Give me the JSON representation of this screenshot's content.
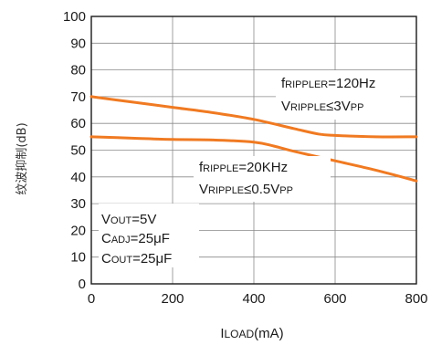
{
  "chart_data": {
    "type": "line",
    "xlabel_main": "I",
    "xlabel_sub": "LOAD",
    "xlabel_unit": "(mA)",
    "ylabel": "纹波抑制(dB)",
    "xlim": [
      0,
      800
    ],
    "ylim": [
      0,
      100
    ],
    "x_ticks": [
      0,
      200,
      400,
      600,
      800
    ],
    "y_ticks": [
      0,
      10,
      20,
      30,
      40,
      50,
      60,
      70,
      80,
      90,
      100
    ],
    "grid": true,
    "line_color": "#f07a22",
    "series": [
      {
        "x": [
          0,
          100,
          200,
          300,
          400,
          500,
          560,
          600,
          700,
          800
        ],
        "y": [
          70,
          68,
          66,
          64,
          61.5,
          58,
          56,
          55.5,
          55,
          55
        ]
      },
      {
        "x": [
          0,
          100,
          200,
          300,
          400,
          450,
          500,
          600,
          700,
          800
        ],
        "y": [
          55,
          54.5,
          54,
          53.8,
          53,
          51.5,
          49.5,
          46,
          42.5,
          38.5
        ]
      }
    ],
    "annotations": {
      "upper": {
        "line1": {
          "main": "f",
          "sub": "RIPPLER",
          "rest": "=120Hz"
        },
        "line2": {
          "main": "V",
          "sub": "RIPPLE",
          "rest": "≤3V",
          "sub2": "PP"
        }
      },
      "lower": {
        "line1": {
          "main": "f",
          "sub": "RIPPLE",
          "rest": "=20KHz"
        },
        "line2": {
          "main": "V",
          "sub": "RIPPLE",
          "rest": "≤0.5V",
          "sub2": "PP"
        }
      },
      "conditions": [
        {
          "main": "V",
          "sub": "OUT",
          "rest": "=5V"
        },
        {
          "main": "C",
          "sub": "ADJ",
          "rest": "=25μF"
        },
        {
          "main": "C",
          "sub": "OUT",
          "rest": "=25μF"
        }
      ]
    }
  }
}
